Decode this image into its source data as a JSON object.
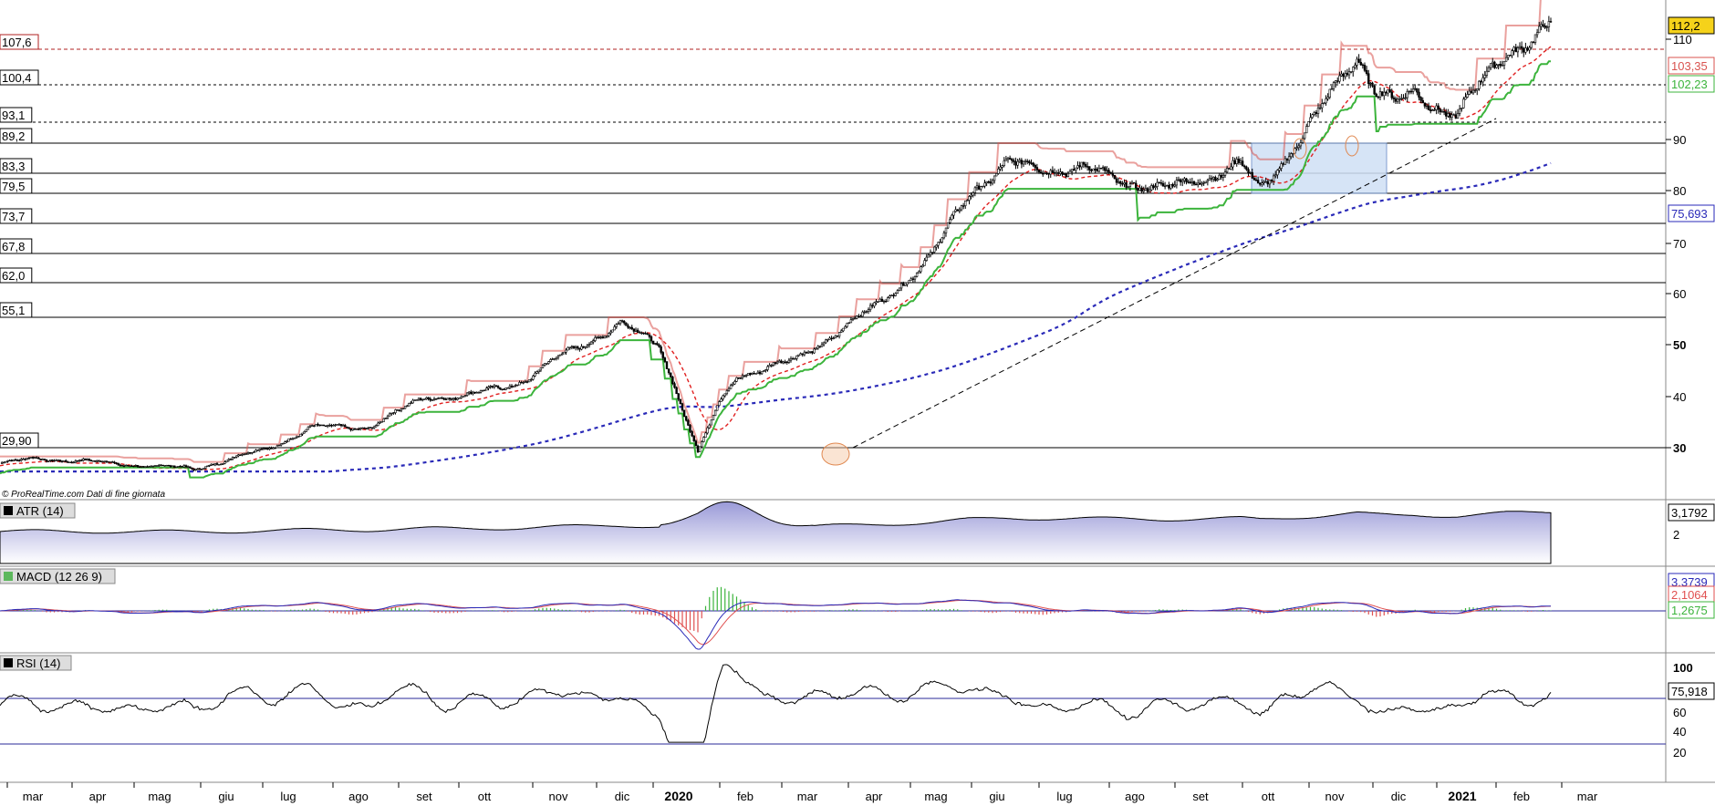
{
  "source_note": "© ProRealTime.com  Dati di fine giornata",
  "colors": {
    "price": "#000000",
    "trailing_red": "#d9534f",
    "trailing_green": "#3cb43c",
    "ma_red_dashed": "#e02020",
    "ma_blue_dotted": "#2a2ab8",
    "box_fill": "#cfe0f5",
    "box_stroke": "#6a8cc8",
    "atr_fill": "#9a9ad8",
    "macd_line": "#2a2ab8",
    "signal_line": "#e05050",
    "hist_pos": "#3cb43c",
    "hist_neg": "#e05050",
    "rsi_line": "#000000",
    "rsi_levels": "#2a2a9a",
    "resistance": "#b22222"
  },
  "price_panel": {
    "y_axis_ticks": [
      "110",
      "90",
      "80",
      "70",
      "60",
      "50",
      "40",
      "30"
    ],
    "levels": [
      {
        "label": "107,6",
        "style": "dashed-red"
      },
      {
        "label": "100,4",
        "style": "dashed-black"
      },
      {
        "label": "93,1",
        "style": "dashed-black"
      },
      {
        "label": "89,2",
        "style": "solid"
      },
      {
        "label": "83,3",
        "style": "solid"
      },
      {
        "label": "79,5",
        "style": "solid"
      },
      {
        "label": "73,7",
        "style": "solid"
      },
      {
        "label": "67,8",
        "style": "solid"
      },
      {
        "label": "62,0",
        "style": "solid"
      },
      {
        "label": "55,1",
        "style": "solid"
      },
      {
        "label": "29,90",
        "style": "solid"
      }
    ],
    "last_price": "112,2",
    "red_trail_value": "103,35",
    "green_trail_value": "102,23",
    "blue_ma_value": "75,693"
  },
  "atr_panel": {
    "title": "ATR (14)",
    "value": "3,1792",
    "tick": "2"
  },
  "macd_panel": {
    "title": "MACD (12 26 9)",
    "macd_value": "3,3739",
    "signal_value": "2,1064",
    "hist_value": "1,2675"
  },
  "rsi_panel": {
    "title": "RSI (14)",
    "value": "75,918",
    "ticks": [
      "100",
      "60",
      "40",
      "20"
    ]
  },
  "x_axis": {
    "months": [
      "mar",
      "apr",
      "mag",
      "giu",
      "lug",
      "ago",
      "set",
      "ott",
      "nov",
      "dic",
      "2020",
      "feb",
      "mar",
      "apr",
      "mag",
      "giu",
      "lug",
      "ago",
      "set",
      "ott",
      "nov",
      "dic",
      "2021",
      "feb",
      "mar"
    ]
  },
  "chart_data": {
    "type": "line",
    "title": "",
    "price_anchors": {
      "x": [
        0,
        20,
        60,
        100,
        140,
        160,
        190,
        220,
        240,
        270,
        290,
        320,
        340,
        350,
        360,
        370,
        380,
        410,
        450,
        480,
        500,
        520,
        560,
        600,
        640,
        650,
        680,
        700,
        710,
        720,
        730,
        740,
        752,
        760,
        768,
        778,
        790,
        800
      ],
      "y": [
        27,
        28,
        27,
        26,
        30,
        34,
        34,
        40,
        40,
        43,
        48,
        54,
        50,
        40,
        29,
        38,
        44,
        47,
        57,
        67,
        80,
        85,
        84,
        80,
        85,
        80,
        95,
        107,
        100,
        97,
        99,
        97,
        95,
        99,
        103,
        108,
        110,
        112.2
      ]
    }
  }
}
